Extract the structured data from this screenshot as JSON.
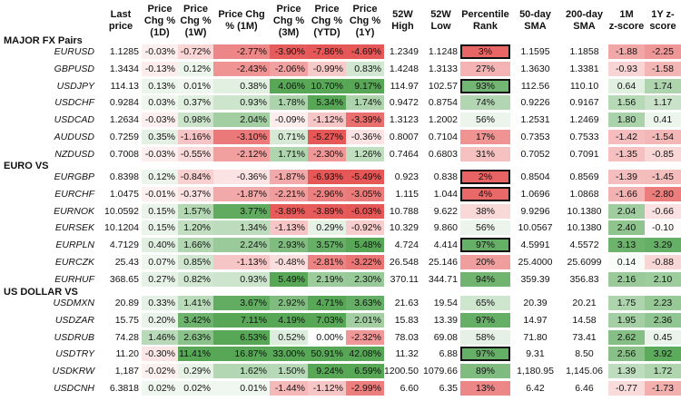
{
  "chart_data": {
    "type": "table",
    "columns": [
      "Last price",
      "Price Chg % (1D)",
      "Price Chg % (1W)",
      "Price Chg % (1M)",
      "Price Chg % (3M)",
      "Price Chg % (YTD)",
      "Price Chg % (1Y)",
      "52W High",
      "52W Low",
      "Percentile Rank",
      "50-day SMA",
      "200-day SMA",
      "1M z-score",
      "1Y z-score"
    ],
    "colors": {
      "neg_max": "#e44a4a",
      "pos_max": "#4aa04a",
      "box_border": "#111111"
    },
    "sections": [
      {
        "title": "MAJOR FX Pairs",
        "rows": [
          {
            "pair": "EURUSD",
            "values": [
              "1.1285",
              "-0.03%",
              "-0.72%",
              "-2.77%",
              "-3.90%",
              "-7.86%",
              "-4.69%",
              "1.2349",
              "1.1248",
              "3%",
              "1.1595",
              "1.1858",
              "-1.88",
              "-2.25"
            ],
            "boxed": true
          },
          {
            "pair": "GBPUSD",
            "values": [
              "1.3434",
              "-0.13%",
              "0.12%",
              "-2.43%",
              "-2.06%",
              "-0.99%",
              "0.83%",
              "1.4248",
              "1.3133",
              "27%",
              "1.3630",
              "1.3381",
              "-0.93",
              "-1.58"
            ],
            "boxed": false
          },
          {
            "pair": "USDJPY",
            "values": [
              "114.13",
              "0.13%",
              "0.01%",
              "0.38%",
              "4.06%",
              "10.70%",
              "9.17%",
              "114.97",
              "102.57",
              "93%",
              "112.56",
              "110.10",
              "0.64",
              "1.74"
            ],
            "boxed": true
          },
          {
            "pair": "USDCHF",
            "values": [
              "0.9284",
              "0.03%",
              "0.37%",
              "0.93%",
              "1.78%",
              "5.34%",
              "1.74%",
              "0.9472",
              "0.8754",
              "74%",
              "0.9226",
              "0.9167",
              "1.56",
              "1.17"
            ],
            "boxed": false
          },
          {
            "pair": "USDCAD",
            "values": [
              "1.2634",
              "-0.03%",
              "0.98%",
              "2.04%",
              "-0.09%",
              "-1.12%",
              "-3.39%",
              "1.3123",
              "1.2002",
              "56%",
              "1.2531",
              "1.2469",
              "1.80",
              "0.41"
            ],
            "boxed": false
          },
          {
            "pair": "AUDUSD",
            "values": [
              "0.7259",
              "0.35%",
              "-1.16%",
              "-3.10%",
              "0.71%",
              "-5.27%",
              "-0.36%",
              "0.8007",
              "0.7104",
              "17%",
              "0.7353",
              "0.7533",
              "-1.42",
              "-1.54"
            ],
            "boxed": false
          },
          {
            "pair": "NZDUSD",
            "values": [
              "0.7008",
              "-0.03%",
              "-0.55%",
              "-2.12%",
              "1.71%",
              "-2.30%",
              "1.26%",
              "0.7464",
              "0.6803",
              "31%",
              "0.7052",
              "0.7091",
              "-1.35",
              "-0.85"
            ],
            "boxed": false
          }
        ]
      },
      {
        "title": "EURO VS",
        "rows": [
          {
            "pair": "EURGBP",
            "values": [
              "0.8398",
              "0.12%",
              "-0.84%",
              "-0.36%",
              "-1.87%",
              "-6.93%",
              "-5.49%",
              "0.923",
              "0.838",
              "2%",
              "0.8504",
              "0.8569",
              "-1.39",
              "-1.45"
            ],
            "boxed": true
          },
          {
            "pair": "EURCHF",
            "values": [
              "1.0475",
              "-0.01%",
              "-0.37%",
              "-1.87%",
              "-2.21%",
              "-2.96%",
              "-3.05%",
              "1.115",
              "1.044",
              "4%",
              "1.0696",
              "1.0868",
              "-1.66",
              "-2.80"
            ],
            "boxed": true
          },
          {
            "pair": "EURNOK",
            "values": [
              "10.0592",
              "0.15%",
              "1.57%",
              "3.77%",
              "-3.89%",
              "-3.89%",
              "-6.03%",
              "10.788",
              "9.622",
              "38%",
              "9.9296",
              "10.1380",
              "2.04",
              "-0.66"
            ],
            "boxed": false
          },
          {
            "pair": "EURSEK",
            "values": [
              "10.1204",
              "0.15%",
              "1.20%",
              "1.34%",
              "-1.13%",
              "0.29%",
              "-0.92%",
              "10.329",
              "9.860",
              "56%",
              "10.0567",
              "10.1380",
              "2.40",
              "-0.10"
            ],
            "boxed": false
          },
          {
            "pair": "EURPLN",
            "values": [
              "4.7129",
              "0.40%",
              "1.66%",
              "2.24%",
              "2.93%",
              "3.57%",
              "5.48%",
              "4.724",
              "4.414",
              "97%",
              "4.5991",
              "4.5572",
              "3.13",
              "3.29"
            ],
            "boxed": true
          },
          {
            "pair": "EURCZK",
            "values": [
              "25.43",
              "0.07%",
              "0.85%",
              "-1.13%",
              "-0.48%",
              "-2.81%",
              "-3.22%",
              "26.548",
              "25.146",
              "20%",
              "25.4000",
              "25.6099",
              "0.14",
              "-0.88"
            ],
            "boxed": false
          },
          {
            "pair": "EURHUF",
            "values": [
              "368.65",
              "0.27%",
              "0.82%",
              "0.93%",
              "5.49%",
              "2.19%",
              "2.30%",
              "370.11",
              "344.71",
              "94%",
              "359.39",
              "356.83",
              "2.16",
              "2.10"
            ],
            "boxed": false
          }
        ]
      },
      {
        "title": "US DOLLAR VS",
        "rows": [
          {
            "pair": "USDMXN",
            "values": [
              "20.89",
              "0.33%",
              "1.41%",
              "3.67%",
              "2.92%",
              "4.71%",
              "3.63%",
              "21.63",
              "19.54",
              "65%",
              "20.39",
              "20.21",
              "1.75",
              "2.23"
            ],
            "boxed": false
          },
          {
            "pair": "USDZAR",
            "values": [
              "15.75",
              "0.20%",
              "3.42%",
              "7.11%",
              "4.19%",
              "7.03%",
              "2.01%",
              "15.83",
              "13.39",
              "97%",
              "14.97",
              "14.58",
              "1.95",
              "2.36"
            ],
            "boxed": false
          },
          {
            "pair": "USDRUB",
            "values": [
              "74.28",
              "1.46%",
              "2.63%",
              "6.53%",
              "0.52%",
              "0.00%",
              "-2.32%",
              "78.03",
              "69.08",
              "58%",
              "71.80",
              "73.41",
              "2.62",
              "0.45"
            ],
            "boxed": false
          },
          {
            "pair": "USDTRY",
            "values": [
              "11.20",
              "-0.30%",
              "11.41%",
              "16.87%",
              "33.00%",
              "50.91%",
              "42.08%",
              "11.32",
              "6.88",
              "97%",
              "9.31",
              "8.50",
              "2.56",
              "3.92"
            ],
            "boxed": true
          },
          {
            "pair": "USDKRW",
            "values": [
              "1,187",
              "-0.02%",
              "0.29%",
              "1.62%",
              "1.50%",
              "9.24%",
              "6.59%",
              "1200.50",
              "1079.66",
              "89%",
              "1,180.95",
              "1,145.06",
              "1.39",
              "1.72"
            ],
            "boxed": false
          },
          {
            "pair": "USDCNH",
            "values": [
              "6.3818",
              "0.02%",
              "0.02%",
              "0.01%",
              "-1.44%",
              "-1.12%",
              "-2.99%",
              "6.60",
              "6.35",
              "13%",
              "6.42",
              "6.46",
              "-0.77",
              "-1.73"
            ],
            "boxed": false
          }
        ]
      }
    ]
  }
}
